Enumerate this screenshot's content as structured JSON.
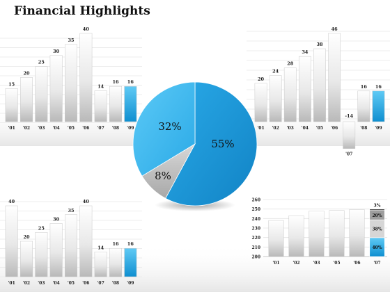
{
  "title": "Financial Highlights",
  "colors": {
    "highlight": "#1aa3e0",
    "bar_light": "#f4f4f4",
    "bar_dark": "#bdbdbd",
    "pie_main": "#1b9ad9",
    "pie_light": "#37b7f0",
    "pie_gray": "#bcbcbc"
  },
  "chart_data": [
    {
      "type": "bar",
      "categories": [
        "'01",
        "'02",
        "'03",
        "'04",
        "'05",
        "'06",
        "'07",
        "'08",
        "'09"
      ],
      "values": [
        15,
        20,
        25,
        30,
        35,
        40,
        14,
        16,
        16
      ],
      "labels": [
        "15",
        "20",
        "25",
        "30",
        "35",
        "40",
        "14",
        "16",
        "16"
      ],
      "highlight_index": 8,
      "ylim": [
        0,
        40
      ]
    },
    {
      "type": "bar",
      "categories": [
        "'01",
        "'02",
        "'03",
        "'04",
        "'05",
        "'06",
        "'07",
        "'08",
        "'09"
      ],
      "values": [
        20,
        24,
        28,
        34,
        38,
        46,
        -14,
        16,
        16
      ],
      "labels": [
        "20",
        "24",
        "28",
        "34",
        "38",
        "46",
        "-14",
        "16",
        "16"
      ],
      "highlight_index": 8,
      "ylim": [
        -14,
        46
      ]
    },
    {
      "type": "pie",
      "slices": [
        {
          "label": "55%",
          "value": 55
        },
        {
          "label": "8%",
          "value": 8
        },
        {
          "label": "32%",
          "value": 32
        }
      ]
    },
    {
      "type": "bar",
      "categories": [
        "'01",
        "'02",
        "'03",
        "'04",
        "'05",
        "'06",
        "'07",
        "'08",
        "'09"
      ],
      "values": [
        40,
        20,
        25,
        30,
        35,
        40,
        14,
        16,
        16
      ],
      "labels": [
        "40",
        "20",
        "25",
        "30",
        "35",
        "40",
        "14",
        "16",
        "16"
      ],
      "highlight_index": 8,
      "ylim": [
        0,
        40
      ]
    },
    {
      "type": "bar",
      "categories": [
        "'01",
        "'02",
        "'03",
        "'05",
        "'06",
        "'07"
      ],
      "values": [
        238,
        243,
        248,
        248.5,
        249.5,
        250
      ],
      "ylim": [
        200,
        260
      ],
      "y_ticks": [
        "200",
        "205",
        "210",
        "215",
        "220",
        "225",
        "230",
        "235",
        "240",
        "245",
        "250",
        "255",
        "260"
      ],
      "stack": [
        {
          "label": "3%",
          "value": 3
        },
        {
          "label": "20%",
          "value": 20
        },
        {
          "label": "38%",
          "value": 38
        },
        {
          "label": "40%",
          "value": 40
        }
      ]
    }
  ]
}
